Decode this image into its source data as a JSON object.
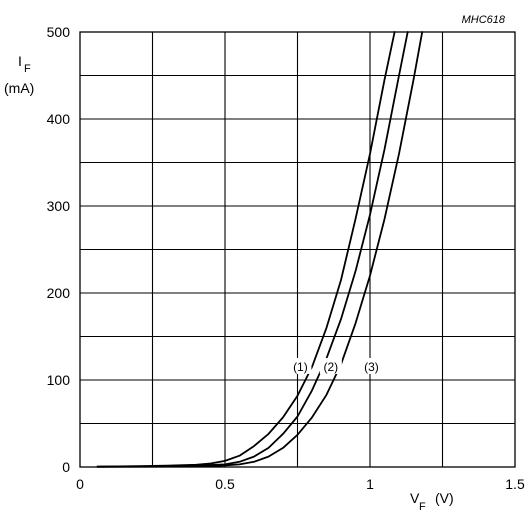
{
  "figure_code": "MHC618",
  "chart_data": {
    "type": "line",
    "title": "",
    "ylabel": {
      "main": "I",
      "sub": "F",
      "unit": "(mA)"
    },
    "xlabel": {
      "main": "V",
      "sub": "F",
      "unit": "(V)"
    },
    "xlim": [
      0,
      1.5
    ],
    "ylim": [
      0,
      500
    ],
    "x_ticks": [
      {
        "value": 0,
        "label": "0"
      },
      {
        "value": 0.5,
        "label": "0.5"
      },
      {
        "value": 1,
        "label": "1"
      },
      {
        "value": 1.5,
        "label": "1.5"
      }
    ],
    "y_ticks": [
      {
        "value": 0,
        "label": "0"
      },
      {
        "value": 100,
        "label": "100"
      },
      {
        "value": 200,
        "label": "200"
      },
      {
        "value": 300,
        "label": "300"
      },
      {
        "value": 400,
        "label": "400"
      },
      {
        "value": 500,
        "label": "500"
      }
    ],
    "grid": {
      "x_step": 0.25,
      "y_step": 50
    },
    "series": [
      {
        "label": "(1)",
        "points": [
          [
            0.06,
            0.5
          ],
          [
            0.2,
            1
          ],
          [
            0.3,
            1.5
          ],
          [
            0.4,
            2.5
          ],
          [
            0.45,
            4
          ],
          [
            0.5,
            7
          ],
          [
            0.55,
            13
          ],
          [
            0.6,
            24
          ],
          [
            0.65,
            38
          ],
          [
            0.7,
            57
          ],
          [
            0.75,
            82
          ],
          [
            0.8,
            115
          ],
          [
            0.85,
            160
          ],
          [
            0.9,
            215
          ],
          [
            0.95,
            285
          ],
          [
            1.0,
            360
          ],
          [
            1.05,
            445
          ],
          [
            1.085,
            500
          ]
        ]
      },
      {
        "label": "(2)",
        "points": [
          [
            0.06,
            0.3
          ],
          [
            0.3,
            0.8
          ],
          [
            0.4,
            1.5
          ],
          [
            0.5,
            3
          ],
          [
            0.55,
            6
          ],
          [
            0.6,
            12
          ],
          [
            0.65,
            22
          ],
          [
            0.7,
            38
          ],
          [
            0.75,
            58
          ],
          [
            0.8,
            88
          ],
          [
            0.85,
            125
          ],
          [
            0.9,
            170
          ],
          [
            0.95,
            225
          ],
          [
            1.0,
            290
          ],
          [
            1.05,
            365
          ],
          [
            1.1,
            450
          ],
          [
            1.13,
            500
          ]
        ]
      },
      {
        "label": "(3)",
        "points": [
          [
            0.06,
            0.2
          ],
          [
            0.3,
            0.5
          ],
          [
            0.45,
            1
          ],
          [
            0.5,
            2
          ],
          [
            0.55,
            3
          ],
          [
            0.6,
            6
          ],
          [
            0.65,
            12
          ],
          [
            0.7,
            22
          ],
          [
            0.75,
            37
          ],
          [
            0.8,
            57
          ],
          [
            0.85,
            83
          ],
          [
            0.9,
            118
          ],
          [
            0.95,
            165
          ],
          [
            1.0,
            220
          ],
          [
            1.05,
            285
          ],
          [
            1.1,
            360
          ],
          [
            1.15,
            445
          ],
          [
            1.18,
            500
          ]
        ]
      }
    ],
    "curve_labels": [
      {
        "text": "(1)",
        "x": 0.76,
        "y": 115
      },
      {
        "text": "(2)",
        "x": 0.865,
        "y": 115
      },
      {
        "text": "(3)",
        "x": 1.005,
        "y": 115
      }
    ]
  }
}
